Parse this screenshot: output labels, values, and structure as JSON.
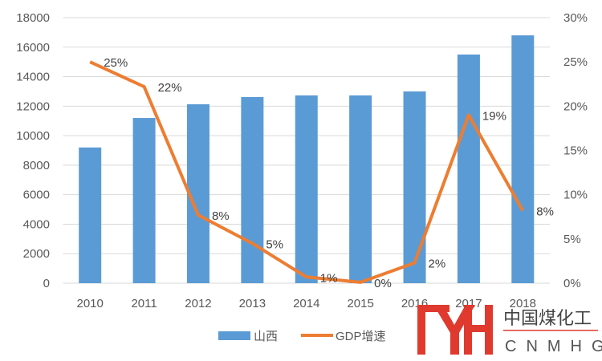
{
  "chart_data": {
    "type": "bar",
    "categories": [
      "2010",
      "2011",
      "2012",
      "2013",
      "2014",
      "2015",
      "2016",
      "2017",
      "2018"
    ],
    "series": [
      {
        "name": "山西",
        "kind": "bar",
        "axis": "left",
        "color": "#5B9BD5",
        "values": [
          9200,
          11200,
          12130,
          12620,
          12730,
          12730,
          13000,
          15500,
          16800
        ]
      },
      {
        "name": "GDP增速",
        "kind": "line",
        "axis": "right",
        "color": "#ED7D31",
        "values": [
          25,
          22.2,
          7.7,
          4.5,
          0.7,
          0.1,
          2.3,
          19,
          8.2
        ],
        "data_labels": [
          "25%",
          "22%",
          "8%",
          "5%",
          "1%",
          "0%",
          "2%",
          "19%",
          "8%"
        ]
      }
    ],
    "y_left": {
      "range": [
        0,
        18000
      ],
      "ticks": [
        "0",
        "2000",
        "4000",
        "6000",
        "8000",
        "10000",
        "12000",
        "14000",
        "16000",
        "18000"
      ]
    },
    "y_right": {
      "range": [
        0,
        30
      ],
      "ticks": [
        "0%",
        "5%",
        "10%",
        "15%",
        "20%",
        "25%",
        "30%"
      ]
    },
    "grid": true,
    "legend": "bottom"
  },
  "watermark": {
    "logo_text": "中国煤化工",
    "logo_sub": "CNMHG",
    "color": "#E03A2E"
  }
}
